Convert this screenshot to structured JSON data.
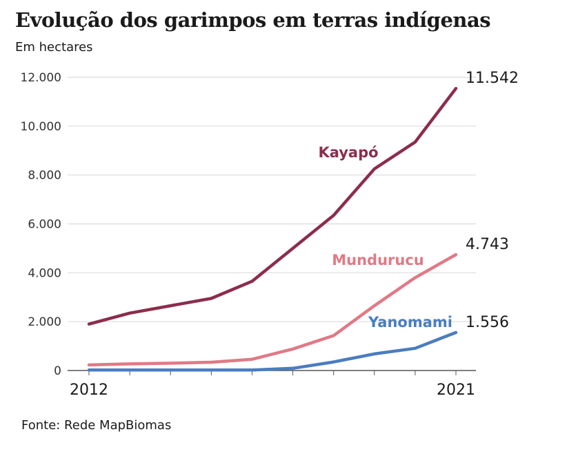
{
  "header": {
    "title": "Evolução dos garimpos em terras indígenas",
    "subtitle": "Em hectares"
  },
  "footer": {
    "source": "Fonte: Rede MapBiomas"
  },
  "chart_data": {
    "type": "line",
    "title": "Evolução dos garimpos em terras indígenas",
    "subtitle": "Em hectares",
    "x": [
      2012,
      2013,
      2014,
      2015,
      2016,
      2017,
      2018,
      2019,
      2020,
      2021
    ],
    "x_tick_labels": [
      "2012",
      "2021"
    ],
    "ylim": [
      0,
      12000
    ],
    "y_ticks": [
      0,
      2000,
      4000,
      6000,
      8000,
      10000,
      12000
    ],
    "y_tick_labels": [
      "0",
      "2.000",
      "4.000",
      "6.000",
      "8.000",
      "10.000",
      "12.000"
    ],
    "grid": true,
    "legend": "inline labels",
    "series": [
      {
        "name": "Kayapó",
        "color": "#8c2d4b",
        "values": [
          1900,
          2350,
          2650,
          2950,
          3650,
          5000,
          6350,
          8250,
          9350,
          11542
        ],
        "end_label": "11.542"
      },
      {
        "name": "Mundurucu",
        "color": "#e07a86",
        "values": [
          230,
          270,
          300,
          340,
          460,
          880,
          1430,
          2650,
          3800,
          4743
        ],
        "end_label": "4.743"
      },
      {
        "name": "Yanomami",
        "color": "#4a7dbf",
        "values": [
          20,
          20,
          20,
          20,
          20,
          90,
          350,
          680,
          910,
          1556
        ],
        "end_label": "1.556"
      }
    ],
    "source": "Fonte: Rede MapBiomas"
  }
}
